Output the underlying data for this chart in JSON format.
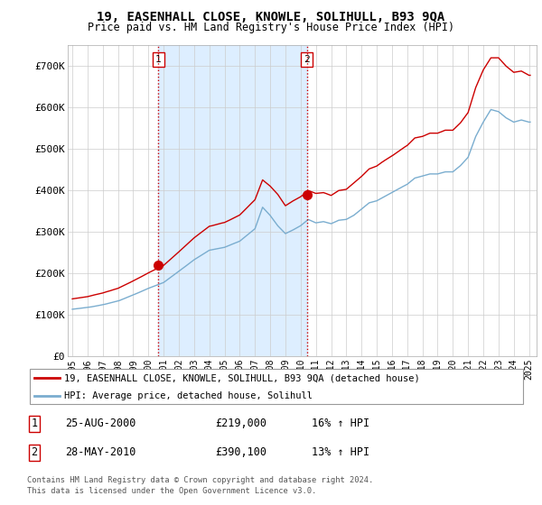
{
  "title": "19, EASENHALL CLOSE, KNOWLE, SOLIHULL, B93 9QA",
  "subtitle": "Price paid vs. HM Land Registry's House Price Index (HPI)",
  "sale1_date": "25-AUG-2000",
  "sale1_price": 219000,
  "sale1_label": "16% ↑ HPI",
  "sale2_date": "28-MAY-2010",
  "sale2_price": 390100,
  "sale2_label": "13% ↑ HPI",
  "legend_property": "19, EASENHALL CLOSE, KNOWLE, SOLIHULL, B93 9QA (detached house)",
  "legend_hpi": "HPI: Average price, detached house, Solihull",
  "footnote1": "Contains HM Land Registry data © Crown copyright and database right 2024.",
  "footnote2": "This data is licensed under the Open Government Licence v3.0.",
  "property_color": "#cc0000",
  "hpi_color": "#7aadcf",
  "shade_color": "#ddeeff",
  "vline_color": "#cc0000",
  "ylim": [
    0,
    750000
  ],
  "yticks": [
    0,
    100000,
    200000,
    300000,
    400000,
    500000,
    600000,
    700000
  ],
  "ytick_labels": [
    "£0",
    "£100K",
    "£200K",
    "£300K",
    "£400K",
    "£500K",
    "£600K",
    "£700K"
  ],
  "sale1_x": 2000.65,
  "sale1_y": 219000,
  "sale2_x": 2010.41,
  "sale2_y": 390100,
  "xlim_left": 1994.7,
  "xlim_right": 2025.5
}
